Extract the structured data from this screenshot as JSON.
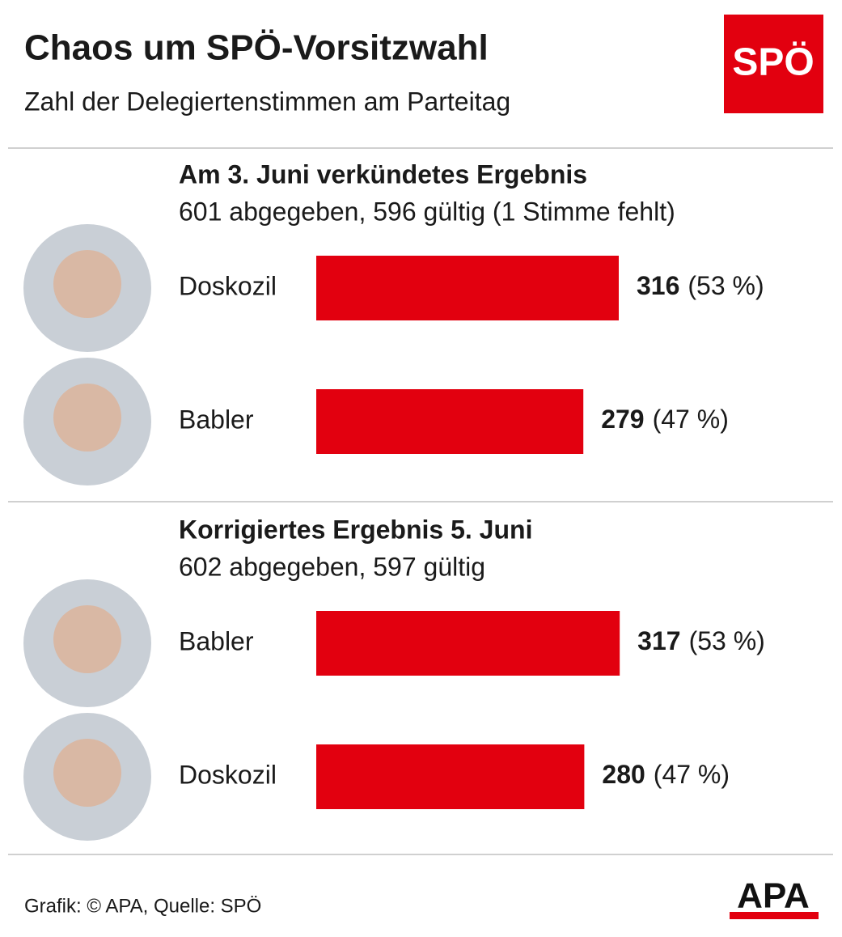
{
  "title": "Chaos um SPÖ-Vorsitzwahl",
  "subtitle": "Zahl der Delegiertenstimmen am Parteitag",
  "logo": "SPÖ",
  "source": "Grafik: © APA, Quelle: SPÖ",
  "agency_logo": "APA",
  "chart_data": [
    {
      "type": "bar",
      "title": "Am 3. Juni verkündetes Ergebnis",
      "subtitle": "601 abgegeben, 596 gültig (1 Stimme fehlt)",
      "categories": [
        "Doskozil",
        "Babler"
      ],
      "values": [
        316,
        279
      ],
      "shares": [
        53,
        47
      ],
      "share_labels": [
        "(53 %)",
        "(47 %)"
      ],
      "color": "#e2000f"
    },
    {
      "type": "bar",
      "title": "Korrigiertes Ergebnis 5. Juni",
      "subtitle": "602 abgegeben, 597 gültig",
      "categories": [
        "Babler",
        "Doskozil"
      ],
      "values": [
        317,
        280
      ],
      "shares": [
        53,
        47
      ],
      "share_labels": [
        "(53 %)",
        "(47 %)"
      ],
      "color": "#e2000f"
    }
  ]
}
